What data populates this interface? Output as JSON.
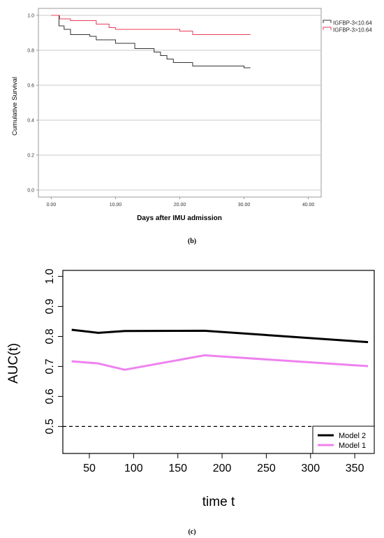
{
  "panels": [
    {
      "label": "(b)"
    },
    {
      "label": "(c)"
    }
  ],
  "chart_data": [
    {
      "type": "line",
      "subtype": "kaplan-meier step",
      "xlabel": "Days after IMU admission",
      "ylabel": "Cumulative Survival",
      "xlim": [
        -2,
        42
      ],
      "ylim": [
        -0.04,
        1.04
      ],
      "x_ticks": [
        "0.00",
        "10.00",
        "20.00",
        "30.00",
        "40.00"
      ],
      "y_ticks": [
        "0.0",
        "0.2",
        "0.4",
        "0.6",
        "0.8",
        "1.0"
      ],
      "grid": "horizontal",
      "legend_position": "top-right outside",
      "series": [
        {
          "name": "IGFBP-3<10.64",
          "color": "#333333",
          "x": [
            0,
            1,
            1.2,
            2,
            3,
            5,
            6,
            7,
            9,
            10,
            11,
            13,
            14,
            15,
            16,
            17,
            18,
            19,
            20,
            22,
            24,
            29,
            30,
            31
          ],
          "y": [
            1.0,
            1.0,
            0.94,
            0.92,
            0.89,
            0.89,
            0.88,
            0.86,
            0.86,
            0.84,
            0.84,
            0.81,
            0.81,
            0.81,
            0.79,
            0.77,
            0.75,
            0.73,
            0.73,
            0.71,
            0.71,
            0.71,
            0.7,
            0.7
          ]
        },
        {
          "name": "IGFBP-3>10.64",
          "color": "#e83c5a",
          "x": [
            0,
            1,
            1.3,
            3,
            7,
            9,
            10,
            20,
            22,
            31
          ],
          "y": [
            1.0,
            1.0,
            0.98,
            0.97,
            0.95,
            0.93,
            0.92,
            0.91,
            0.89,
            0.89
          ]
        }
      ]
    },
    {
      "type": "line",
      "xlabel": "time t",
      "ylabel": "AUC(t)",
      "xlim": [
        20,
        372
      ],
      "ylim": [
        0.41,
        1.02
      ],
      "x_ticks": [
        "50",
        "100",
        "150",
        "200",
        "250",
        "300",
        "350"
      ],
      "y_ticks": [
        "0.5",
        "0.6",
        "0.7",
        "0.8",
        "0.9",
        "1.0"
      ],
      "legend_position": "bottom-right",
      "reference_line": {
        "y": 0.5,
        "style": "dashed"
      },
      "series": [
        {
          "name": "Model 2",
          "color": "#000000",
          "x": [
            30,
            60,
            90,
            180,
            365
          ],
          "y": [
            0.822,
            0.812,
            0.818,
            0.819,
            0.781
          ]
        },
        {
          "name": "Model 1",
          "color": "#ee82ee",
          "x": [
            30,
            60,
            90,
            180,
            365
          ],
          "y": [
            0.717,
            0.71,
            0.689,
            0.737,
            0.701
          ]
        }
      ]
    }
  ]
}
